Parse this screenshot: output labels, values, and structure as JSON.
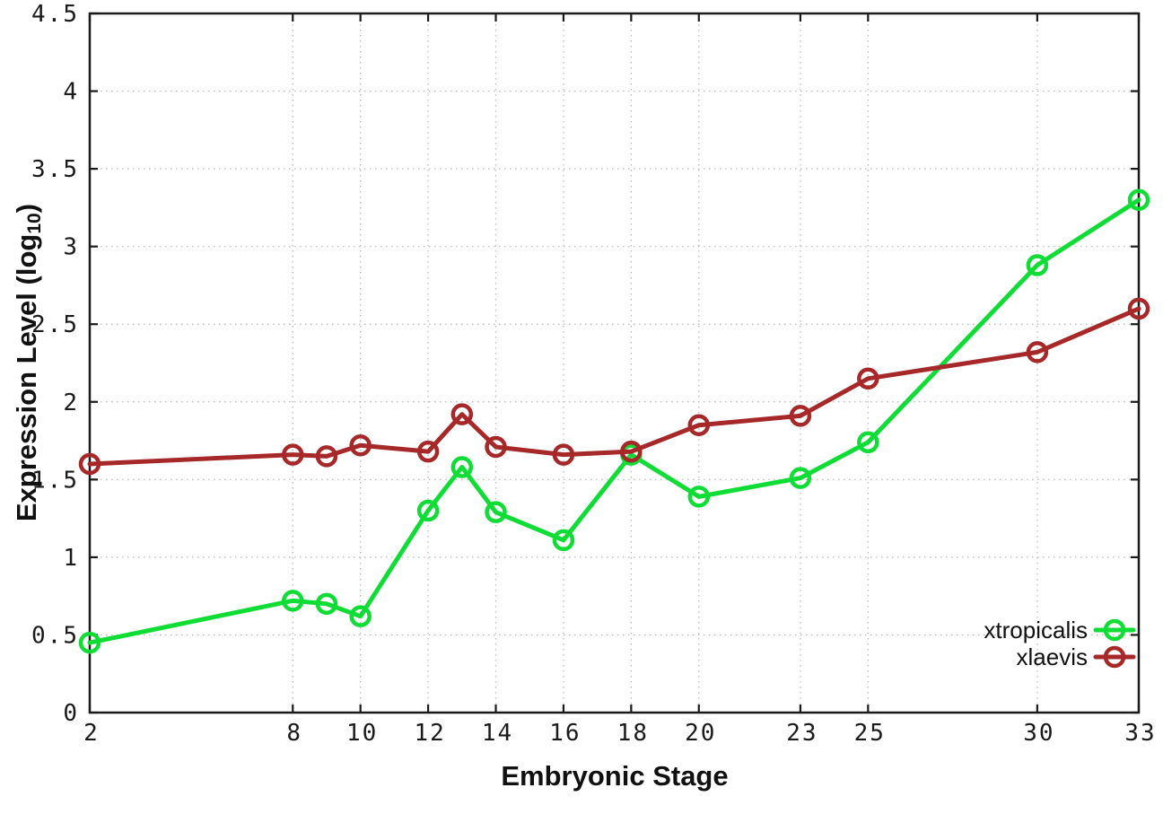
{
  "chart_data": {
    "type": "line",
    "title": "",
    "xlabel": "Embryonic Stage",
    "ylabel": "Expression Level (log10)",
    "ylabel_parts": {
      "main": "Expression Level (log",
      "sub": "10",
      "suffix": ")"
    },
    "x": [
      2,
      8,
      9,
      10,
      12,
      13,
      14,
      16,
      18,
      20,
      23,
      25,
      30,
      33
    ],
    "series": [
      {
        "name": "xtropicalis",
        "color": "#0fdd35",
        "values": [
          0.45,
          0.72,
          0.7,
          0.62,
          1.3,
          1.58,
          1.29,
          1.11,
          1.66,
          1.39,
          1.51,
          1.74,
          2.88,
          3.3
        ]
      },
      {
        "name": "xlaevis",
        "color": "#a62828",
        "values": [
          1.6,
          1.66,
          1.65,
          1.72,
          1.68,
          1.92,
          1.71,
          1.66,
          1.68,
          1.85,
          1.91,
          2.15,
          2.32,
          2.6
        ]
      }
    ],
    "xticks": [
      2,
      8,
      10,
      12,
      14,
      16,
      18,
      20,
      23,
      25,
      30,
      33
    ],
    "yticks": [
      0,
      0.5,
      1,
      1.5,
      2,
      2.5,
      3,
      3.5,
      4,
      4.5
    ],
    "ytick_labels": [
      "0",
      "0.5",
      "1",
      "1.5",
      "2",
      "2.5",
      "3",
      "3.5",
      "4",
      "4.5"
    ],
    "xlim": [
      2,
      33
    ],
    "ylim": [
      0,
      4.5
    ],
    "grid": true,
    "legend_position": "inside-right-lower",
    "marker": "open-circle",
    "colors": {
      "border": "#1a1a1a",
      "grid": "#b5b5b5",
      "tick_text": "#1a1a1a"
    }
  }
}
